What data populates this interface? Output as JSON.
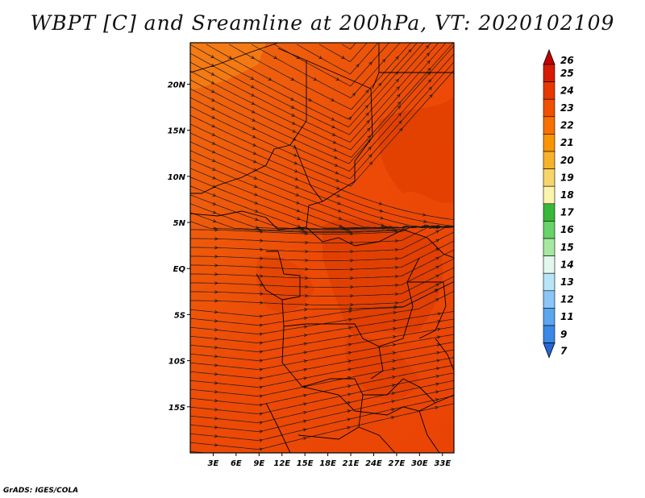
{
  "title": "WBPT [C] and Sreamline at 200hPa, VT: 2020102109",
  "credit": "GrADS: IGES/COLA",
  "map": {
    "lon_range": [
      0,
      34.5
    ],
    "lat_range": [
      -20,
      24.5
    ],
    "lat_ticks": [
      "20N",
      "15N",
      "10N",
      "5N",
      "EQ",
      "5S",
      "10S",
      "15S"
    ],
    "lat_values": [
      20,
      15,
      10,
      5,
      0,
      -5,
      -10,
      -15
    ],
    "lon_ticks": [
      "3E",
      "6E",
      "9E",
      "12E",
      "15E",
      "18E",
      "21E",
      "24E",
      "27E",
      "30E",
      "33E"
    ],
    "lon_values": [
      3,
      6,
      9,
      12,
      15,
      18,
      21,
      24,
      27,
      30,
      33
    ],
    "field": "WBPT",
    "field_units": "C",
    "dominant_range": "23-25",
    "streamline_color": "#1a1a1a",
    "border_color": "#000000"
  },
  "colorbar": {
    "labels": [
      "26",
      "25",
      "24",
      "23",
      "22",
      "21",
      "20",
      "19",
      "18",
      "17",
      "16",
      "15",
      "14",
      "13",
      "12",
      "11",
      "9",
      "7"
    ],
    "colors": [
      "#c00000",
      "#d81a00",
      "#e63800",
      "#f05000",
      "#f87000",
      "#fa9400",
      "#f8b22a",
      "#f6d56a",
      "#fbf4aa",
      "#38b838",
      "#66d466",
      "#a6e8a0",
      "#e2f8ec",
      "#b8e4f8",
      "#8ac6f8",
      "#5aa6f0",
      "#3a88e8",
      "#2266d8"
    ]
  }
}
